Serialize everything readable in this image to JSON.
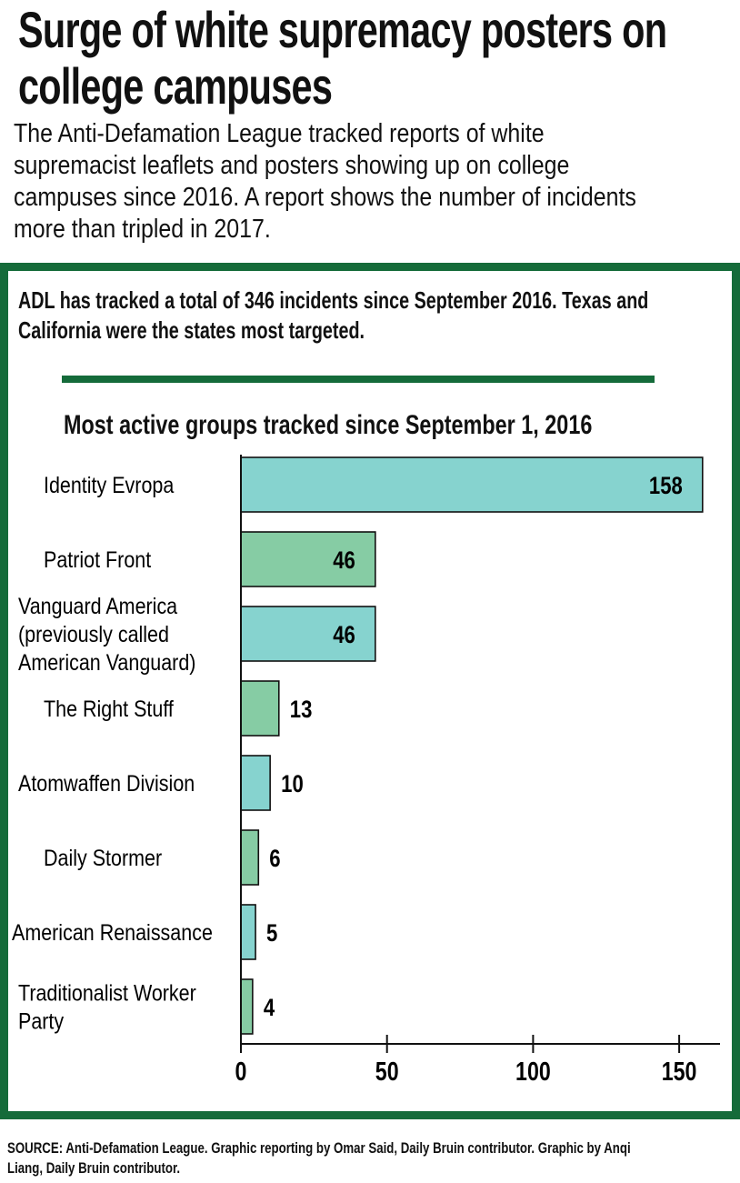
{
  "header": {
    "title_line1": "Surge of white supremacy posters on",
    "title_line2": "college campuses",
    "subtitle_lines": [
      "The Anti-Defamation League tracked reports of white",
      "supremacist leaflets and posters showing up on college",
      "campuses since 2016. A report shows the number of incidents",
      "more than tripled in 2017."
    ]
  },
  "box": {
    "lead_lines": [
      "ADL has tracked a total of 346 incidents since September 2016. Texas and",
      "California were the states most targeted."
    ]
  },
  "colors": {
    "frame": "#156b3a",
    "bar_teal": "#86d3cf",
    "bar_green": "#86cca4"
  },
  "chart_data": {
    "type": "bar",
    "orientation": "horizontal",
    "title": "Most active groups tracked since September 1, 2016",
    "categories": [
      [
        "Identity Evropa"
      ],
      [
        "Patriot Front"
      ],
      [
        "Vanguard America",
        "(previously called",
        "American Vanguard)"
      ],
      [
        "The Right Stuff"
      ],
      [
        "Atomwaffen Division"
      ],
      [
        "Daily Stormer"
      ],
      [
        "American Renaissance"
      ],
      [
        "Traditionalist Worker",
        "Party"
      ]
    ],
    "values": [
      158,
      46,
      46,
      13,
      10,
      6,
      5,
      4
    ],
    "bar_colors": [
      "teal",
      "green",
      "teal",
      "green",
      "teal",
      "green",
      "teal",
      "green"
    ],
    "xlim": [
      0,
      165
    ],
    "xticks": [
      0,
      50,
      100,
      150
    ],
    "value_labels": true,
    "grid": false,
    "legend": "none"
  },
  "footer": {
    "source_lines": [
      "SOURCE: Anti-Defamation League. Graphic reporting by Omar Said, Daily Bruin contributor. Graphic by Anqi",
      "Liang, Daily Bruin contributor."
    ]
  }
}
